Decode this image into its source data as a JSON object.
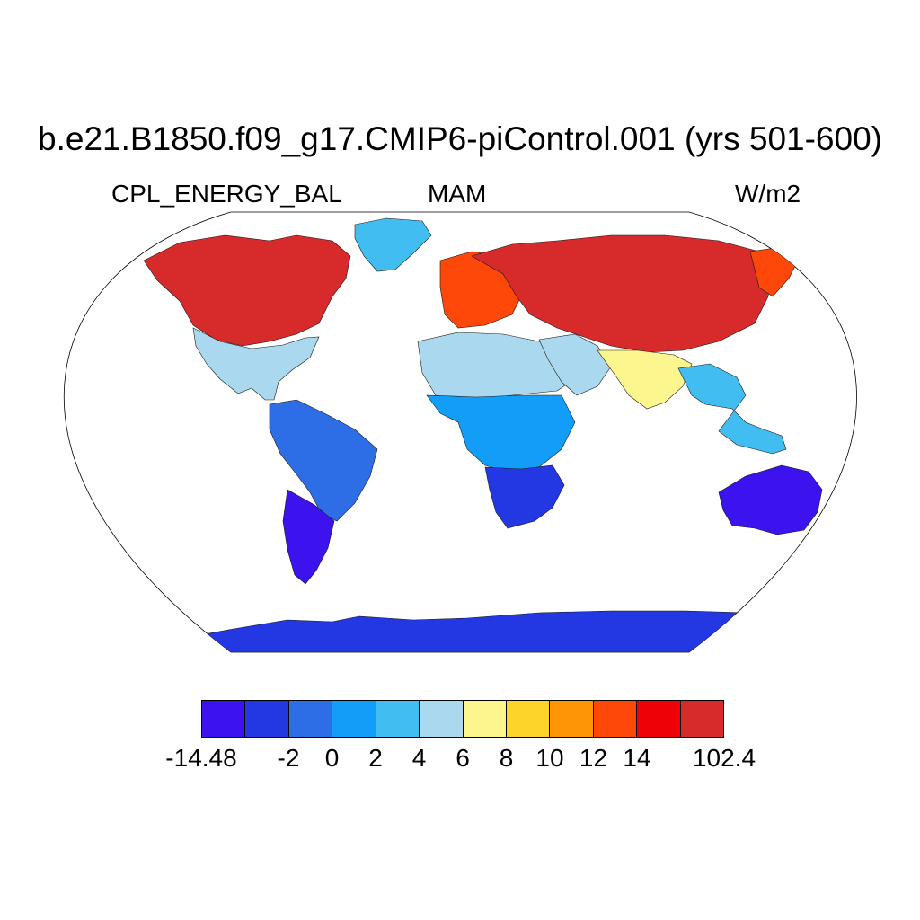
{
  "title": "b.e21.B1850.f09_g17.CMIP6-piControl.001 (yrs 501-600)",
  "subtitle_left": "CPL_ENERGY_BAL",
  "subtitle_center": "MAM",
  "subtitle_right": "W/m2",
  "colorbar": {
    "colors": [
      "#3c12ee",
      "#2337e2",
      "#2d6ee6",
      "#129ef8",
      "#41bdf1",
      "#aad8ee",
      "#fdf58e",
      "#fdd42a",
      "#fd9506",
      "#fd480a",
      "#ee0207",
      "#d62a2b"
    ],
    "labels": [
      "-14.48",
      "-2",
      "0",
      "2",
      "4",
      "6",
      "8",
      "10",
      "12",
      "14",
      "102.4"
    ],
    "label_boundaries": [
      0,
      2,
      3,
      4,
      5,
      6,
      7,
      8,
      9,
      10,
      12
    ]
  },
  "map_data": {
    "projection": "Robinson",
    "variable": "CPL_ENERGY_BAL",
    "season": "MAM",
    "units": "W/m2",
    "regions": [
      {
        "name": "North America north",
        "class": 11
      },
      {
        "name": "North America south",
        "class": 5
      },
      {
        "name": "Greenland",
        "class": 4
      },
      {
        "name": "South America",
        "class": 2
      },
      {
        "name": "Patagonia",
        "class": 0
      },
      {
        "name": "Europe",
        "class": 9
      },
      {
        "name": "Sahara",
        "class": 5
      },
      {
        "name": "Central Africa",
        "class": 3
      },
      {
        "name": "Southern Africa",
        "class": 1
      },
      {
        "name": "Arabia",
        "class": 5
      },
      {
        "name": "Siberia and Central Asia",
        "class": 11
      },
      {
        "name": "East Siberia coast",
        "class": 9
      },
      {
        "name": "South Asia",
        "class": 6
      },
      {
        "name": "Southeast Asia",
        "class": 4
      },
      {
        "name": "Australia",
        "class": 0
      },
      {
        "name": "New Zealand",
        "class": 2
      },
      {
        "name": "Antarctica",
        "class": 1
      }
    ]
  }
}
